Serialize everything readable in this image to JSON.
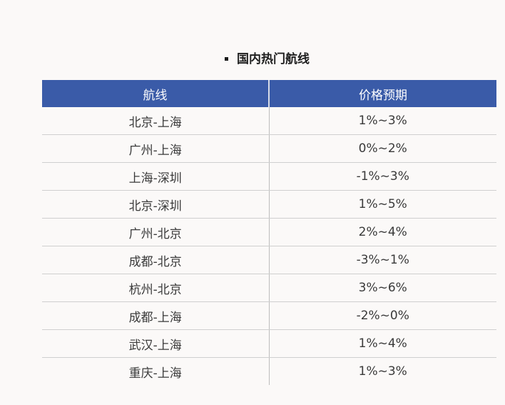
{
  "title": "国内热门航线",
  "table": {
    "headers": [
      "航线",
      "价格预期"
    ],
    "rows": [
      {
        "route": "北京-上海",
        "price": "1%~3%"
      },
      {
        "route": "广州-上海",
        "price": "0%~2%"
      },
      {
        "route": "上海-深圳",
        "price": "-1%~3%"
      },
      {
        "route": "北京-深圳",
        "price": "1%~5%"
      },
      {
        "route": "广州-北京",
        "price": "2%~4%"
      },
      {
        "route": "成都-北京",
        "price": "-3%~1%"
      },
      {
        "route": "杭州-北京",
        "price": "3%~6%"
      },
      {
        "route": "成都-上海",
        "price": "-2%~0%"
      },
      {
        "route": "武汉-上海",
        "price": "1%~4%"
      },
      {
        "route": "重庆-上海",
        "price": "1%~3%"
      }
    ]
  }
}
